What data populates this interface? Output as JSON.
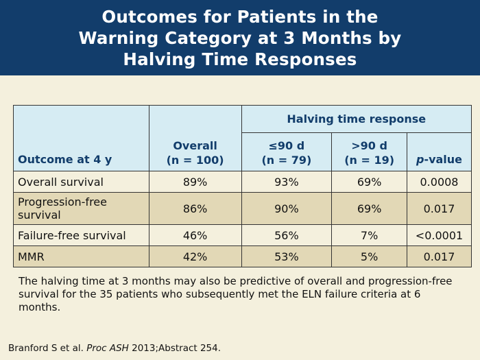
{
  "title": {
    "line1": "Outcomes for Patients in the",
    "line2": "Warning Category at 3 Months by",
    "line3": "Halving Time Responses"
  },
  "table": {
    "group_header": "Halving time response",
    "headers": {
      "outcome": "Outcome at 4 y",
      "overall_line1": "Overall",
      "overall_line2": "(n = 100)",
      "le90_line1": "≤90 d",
      "le90_line2": "(n = 79)",
      "gt90_line1": ">90 d",
      "gt90_line2": "(n = 19)",
      "pvalue_italic": "p",
      "pvalue_rest": "-value"
    },
    "rows": [
      {
        "outcome": "Overall survival",
        "overall": "89%",
        "le90": "93%",
        "gt90": "69%",
        "p": "0.0008"
      },
      {
        "outcome": "Progression-free survival",
        "overall": "86%",
        "le90": "90%",
        "gt90": "69%",
        "p": "0.017"
      },
      {
        "outcome": "Failure-free survival",
        "overall": "46%",
        "le90": "56%",
        "gt90": "7%",
        "p": "<0.0001"
      },
      {
        "outcome": "MMR",
        "overall": "42%",
        "le90": "53%",
        "gt90": "5%",
        "p": "0.017"
      }
    ]
  },
  "note": "The halving time at 3 months may also be predictive of overall and progression-free survival for the 35 patients who subsequently met the ELN failure criteria at 6 months.",
  "citation": {
    "authors": "Branford S et al. ",
    "journal": "Proc ASH",
    "rest": " 2013;Abstract 254."
  }
}
